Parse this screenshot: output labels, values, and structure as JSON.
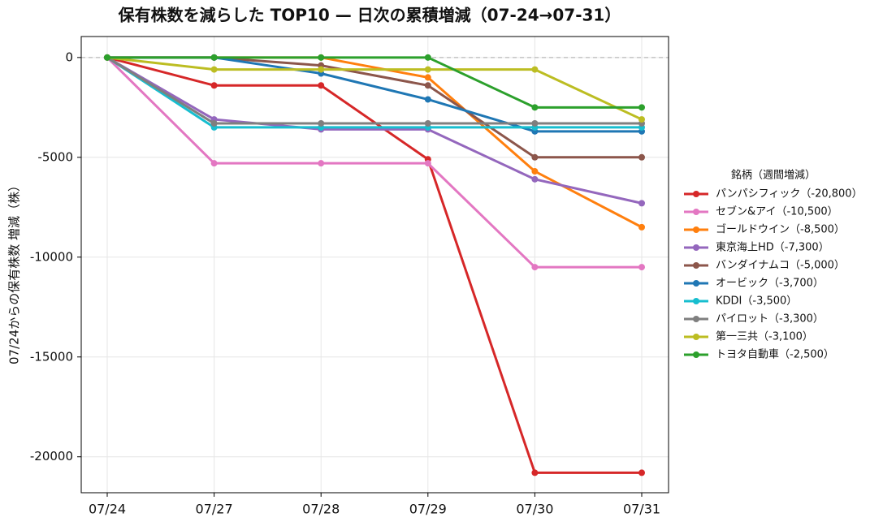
{
  "chart_data": {
    "type": "line",
    "title": "保有株数を減らした TOP10 — 日次の累積増減（07-24→07-31）",
    "y_label": "07/24からの保有株数 増減（株）",
    "legend_title": "銘柄（週間増減）",
    "legend_position": "right",
    "grid": true,
    "zero_line": true,
    "categories": [
      "07/24",
      "07/27",
      "07/28",
      "07/29",
      "07/30",
      "07/31"
    ],
    "ylim": [
      -21800,
      1050
    ],
    "yticks": [
      0,
      -5000,
      -10000,
      -15000,
      -20000
    ],
    "series": [
      {
        "name": "パンパシフィック（-20,800）",
        "color": "#d62728",
        "values": [
          0,
          -1400,
          -1400,
          -5100,
          -20800,
          -20800
        ]
      },
      {
        "name": "セブン&アイ（-10,500）",
        "color": "#e377c2",
        "values": [
          0,
          -5300,
          -5300,
          -5300,
          -10500,
          -10500
        ]
      },
      {
        "name": "ゴールドウイン（-8,500）",
        "color": "#ff7f0e",
        "values": [
          0,
          0,
          0,
          -1000,
          -5700,
          -8500
        ]
      },
      {
        "name": "東京海上HD（-7,300）",
        "color": "#9467bd",
        "values": [
          0,
          -3100,
          -3600,
          -3600,
          -6100,
          -7300
        ]
      },
      {
        "name": "バンダイナムコ（-5,000）",
        "color": "#8c564b",
        "values": [
          0,
          0,
          -400,
          -1400,
          -5000,
          -5000
        ]
      },
      {
        "name": "オービック（-3,700）",
        "color": "#1f77b4",
        "values": [
          0,
          0,
          -800,
          -2100,
          -3700,
          -3700
        ]
      },
      {
        "name": "KDDI（-3,500）",
        "color": "#17becf",
        "values": [
          0,
          -3500,
          -3500,
          -3500,
          -3500,
          -3500
        ]
      },
      {
        "name": "パイロット（-3,300）",
        "color": "#7f7f7f",
        "values": [
          0,
          -3300,
          -3300,
          -3300,
          -3300,
          -3300
        ]
      },
      {
        "name": "第一三共（-3,100）",
        "color": "#bcbd22",
        "values": [
          0,
          -600,
          -600,
          -600,
          -600,
          -3100
        ]
      },
      {
        "name": "トヨタ自動車（-2,500）",
        "color": "#2ca02c",
        "values": [
          0,
          0,
          0,
          0,
          -2500,
          -2500
        ]
      }
    ]
  }
}
